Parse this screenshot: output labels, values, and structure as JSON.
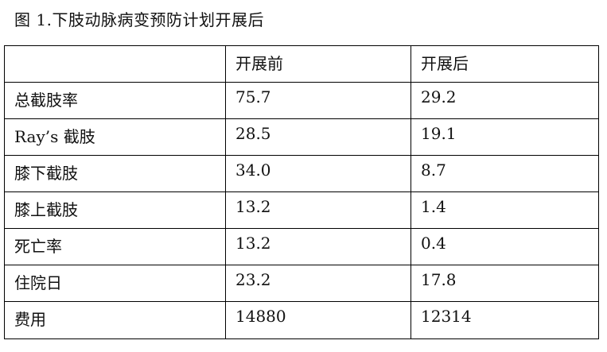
{
  "caption": "图 1.下肢动脉病变预防计划开展后",
  "table": {
    "headers": [
      "",
      "开展前",
      "开展后"
    ],
    "rows": [
      [
        "总截肢率",
        "75.7",
        "29.2"
      ],
      [
        "Ray’s 截肢",
        "28.5",
        "19.1"
      ],
      [
        "膝下截肢",
        "34.0",
        "8.7"
      ],
      [
        "膝上截肢",
        "13.2",
        "1.4"
      ],
      [
        "死亡率",
        "13.2",
        "0.4"
      ],
      [
        "住院日",
        "23.2",
        "17.8"
      ],
      [
        "费用",
        "14880",
        "12314"
      ]
    ]
  }
}
